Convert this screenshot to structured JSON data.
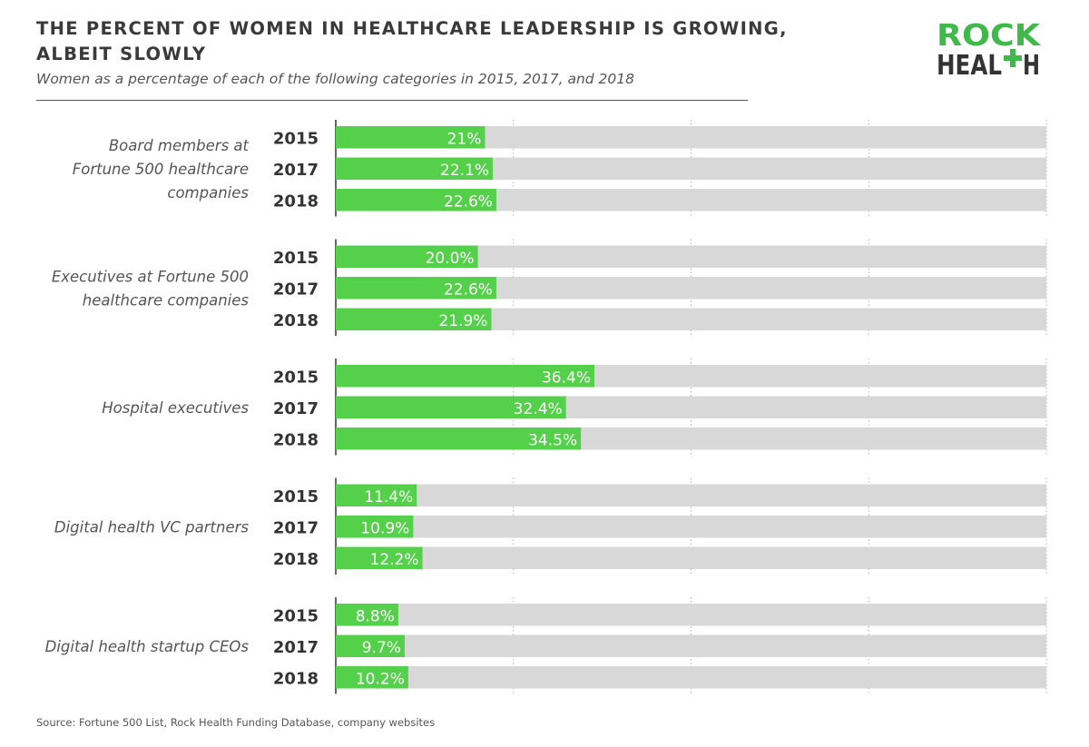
{
  "header": {
    "title": "THE PERCENT OF WOMEN IN HEALTHCARE LEADERSHIP IS GROWING, ALBEIT SLOWLY",
    "subtitle": "Women as a percentage of each of the following categories in 2015, 2017, and 2018"
  },
  "logo": {
    "line1": "ROCK",
    "line2_prefix": "HEAL",
    "line2_suffix": "H",
    "cross_glyph": "plus-sign",
    "color": "#3fb94a",
    "text_color": "#333333"
  },
  "source": "Source: Fortune 500 List, Rock Health Funding Database, company websites",
  "colors": {
    "bar": "#55d04b",
    "track": "#d8d8d8",
    "label_text": "#555555",
    "year_text": "#333333",
    "value_text": "#ffffff"
  },
  "chart_data": {
    "type": "bar",
    "orientation": "horizontal",
    "title": "THE PERCENT OF WOMEN IN HEALTHCARE LEADERSHIP IS GROWING, ALBEIT SLOWLY",
    "subtitle": "Women as a percentage of each of the following categories in 2015, 2017, and 2018",
    "xlim": [
      0,
      100
    ],
    "grid": true,
    "groups": [
      {
        "category": "Board members at Fortune 500 healthcare companies",
        "label_lines": [
          "Board members at",
          "Fortune 500 healthcare",
          "companies"
        ],
        "bars": [
          {
            "year": "2015",
            "value": 21.0,
            "label": "21%"
          },
          {
            "year": "2017",
            "value": 22.1,
            "label": "22.1%"
          },
          {
            "year": "2018",
            "value": 22.6,
            "label": "22.6%"
          }
        ]
      },
      {
        "category": "Executives at Fortune 500 healthcare companies",
        "label_lines": [
          "Executives at Fortune 500",
          "healthcare companies"
        ],
        "bars": [
          {
            "year": "2015",
            "value": 20.0,
            "label": "20.0%"
          },
          {
            "year": "2017",
            "value": 22.6,
            "label": "22.6%"
          },
          {
            "year": "2018",
            "value": 21.9,
            "label": "21.9%"
          }
        ]
      },
      {
        "category": "Hospital executives",
        "label_lines": [
          "Hospital executives"
        ],
        "bars": [
          {
            "year": "2015",
            "value": 36.4,
            "label": "36.4%"
          },
          {
            "year": "2017",
            "value": 32.4,
            "label": "32.4%"
          },
          {
            "year": "2018",
            "value": 34.5,
            "label": "34.5%"
          }
        ]
      },
      {
        "category": "Digital health VC partners",
        "label_lines": [
          "Digital health VC partners"
        ],
        "bars": [
          {
            "year": "2015",
            "value": 11.4,
            "label": "11.4%"
          },
          {
            "year": "2017",
            "value": 10.9,
            "label": "10.9%"
          },
          {
            "year": "2018",
            "value": 12.2,
            "label": "12.2%"
          }
        ]
      },
      {
        "category": "Digital health startup CEOs",
        "label_lines": [
          "Digital health startup CEOs"
        ],
        "bars": [
          {
            "year": "2015",
            "value": 8.8,
            "label": "8.8%"
          },
          {
            "year": "2017",
            "value": 9.7,
            "label": "9.7%"
          },
          {
            "year": "2018",
            "value": 10.2,
            "label": "10.2%"
          }
        ]
      }
    ]
  }
}
